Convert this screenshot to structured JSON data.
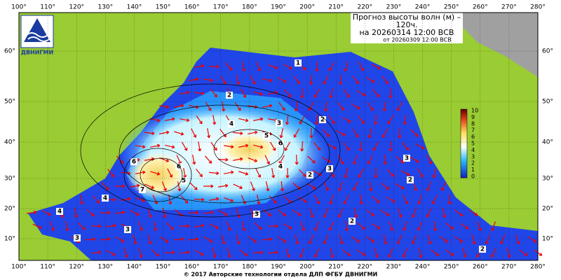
{
  "header": {
    "title": "Прогноз высоты волн (м) –",
    "title2": "120ч.",
    "valid": "на 20260314 12:00 ВСВ",
    "issued": "от 20260309 12:00 ВСВ"
  },
  "logo": "ДВНИГМИ",
  "longitude_labels": [
    "100°",
    "110°",
    "120°",
    "130°",
    "140°",
    "150°",
    "160°",
    "170°",
    "180°",
    "190°",
    "200°",
    "210°",
    "220°",
    "230°",
    "240°",
    "250°",
    "260°",
    "270°",
    "280°"
  ],
  "latitude_labels": [
    "60°",
    "50°",
    "40°",
    "30°",
    "20°",
    "10°"
  ],
  "color_scale": {
    "labels": [
      "10",
      "9",
      "8",
      "7",
      "6",
      "5",
      "4",
      "3",
      "2",
      "1",
      "0"
    ]
  },
  "contour_labels": [
    "2",
    "3",
    "4",
    "5",
    "6",
    "6",
    "5",
    "6",
    "7",
    "4",
    "3",
    "2",
    "3",
    "3",
    "4",
    "2",
    "3",
    "4",
    "3",
    "2",
    "2",
    "2",
    "1"
  ],
  "footer": "© 2017 Авторские технологии отдела ДЛП ФГБУ ДВНИГМИ"
}
